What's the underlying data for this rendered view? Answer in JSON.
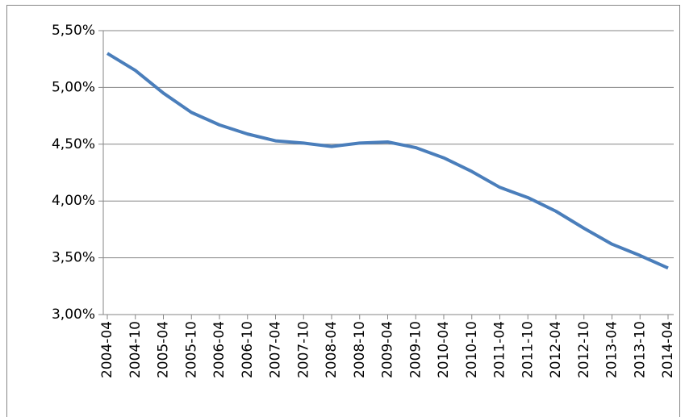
{
  "chart_data": {
    "type": "line",
    "categories": [
      "2004-04",
      "2004-10",
      "2005-04",
      "2005-10",
      "2006-04",
      "2006-10",
      "2007-04",
      "2007-10",
      "2008-04",
      "2008-10",
      "2009-04",
      "2009-10",
      "2010-04",
      "2010-10",
      "2011-04",
      "2011-10",
      "2012-04",
      "2012-10",
      "2013-04",
      "2013-10",
      "2014-04"
    ],
    "series": [
      {
        "color": "#4a7ebb",
        "values": [
          5.3,
          5.15,
          4.95,
          4.78,
          4.67,
          4.59,
          4.53,
          4.51,
          4.48,
          4.51,
          4.52,
          4.47,
          4.38,
          4.26,
          4.12,
          4.03,
          3.91,
          3.76,
          3.62,
          3.52,
          3.41
        ]
      }
    ],
    "ylim": [
      3.0,
      5.5
    ],
    "yticks": [
      {
        "value": 3.0,
        "label": "3,00%"
      },
      {
        "value": 3.5,
        "label": "3,50%"
      },
      {
        "value": 4.0,
        "label": "4,00%"
      },
      {
        "value": 4.5,
        "label": "4,50%"
      },
      {
        "value": 5.0,
        "label": "5,00%"
      },
      {
        "value": 5.5,
        "label": "5,50%"
      }
    ],
    "grid": true
  }
}
